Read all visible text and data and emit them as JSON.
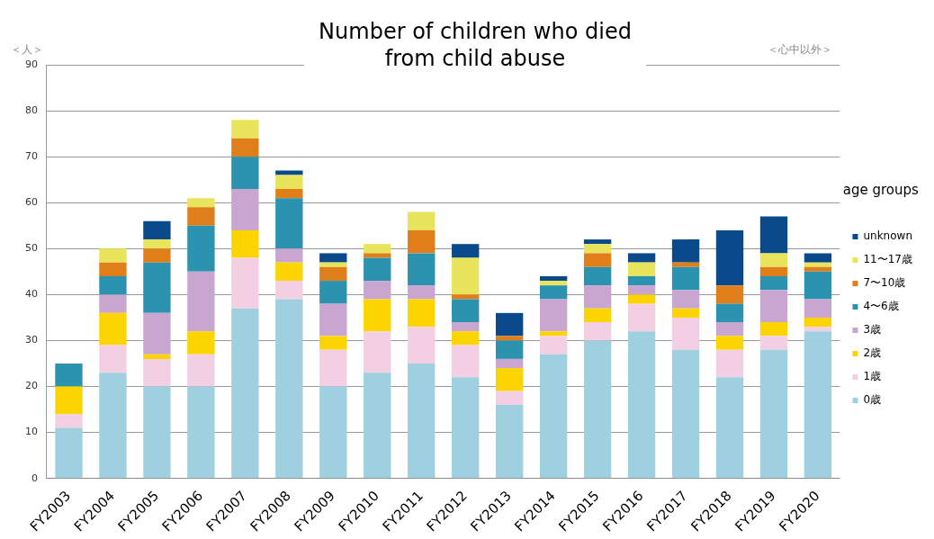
{
  "chart_data": {
    "type": "bar",
    "title": "Number of children who died from child abuse",
    "ylabel": "＜人＞",
    "legend_title": "age groups",
    "annotations": [
      "＜心中以外＞"
    ],
    "categories": [
      "FY2003",
      "FY2004",
      "FY2005",
      "FY2006",
      "FY2007",
      "FY2008",
      "FY2009",
      "FY2010",
      "FY2011",
      "FY2012",
      "FY2013",
      "FY2014",
      "FY2015",
      "FY2016",
      "FY2017",
      "FY2018",
      "FY2019",
      "FY2020"
    ],
    "stacked": true,
    "ylim": [
      0,
      90
    ],
    "yticks": [
      0,
      10,
      20,
      30,
      40,
      50,
      60,
      70,
      80,
      90
    ],
    "grid": "y",
    "legend": "right",
    "series": [
      {
        "name": "0歳",
        "color": "#9fd0e0",
        "values": [
          11,
          23,
          20,
          20,
          37,
          39,
          20,
          23,
          25,
          22,
          16,
          27,
          30,
          32,
          28,
          22,
          28,
          32
        ]
      },
      {
        "name": "1歳",
        "color": "#f2cfe3",
        "values": [
          3,
          6,
          6,
          7,
          11,
          4,
          8,
          9,
          8,
          7,
          3,
          4,
          4,
          6,
          7,
          6,
          3,
          1
        ]
      },
      {
        "name": "2歳",
        "color": "#fcd500",
        "values": [
          6,
          7,
          1,
          5,
          6,
          4,
          3,
          7,
          6,
          3,
          5,
          1,
          3,
          2,
          2,
          3,
          3,
          2
        ]
      },
      {
        "name": "3歳",
        "color": "#c9a6d0",
        "values": [
          0,
          4,
          9,
          13,
          9,
          3,
          7,
          4,
          3,
          2,
          2,
          7,
          5,
          2,
          4,
          3,
          7,
          4
        ]
      },
      {
        "name": "4〜6歳",
        "color": "#2b93b0",
        "values": [
          5,
          4,
          11,
          10,
          7,
          11,
          5,
          5,
          7,
          5,
          4,
          3,
          4,
          2,
          5,
          4,
          3,
          6
        ]
      },
      {
        "name": "7〜10歳",
        "color": "#e07f1a",
        "values": [
          0,
          3,
          3,
          4,
          4,
          2,
          3,
          1,
          5,
          1,
          1,
          0,
          3,
          0,
          1,
          4,
          2,
          1
        ]
      },
      {
        "name": "11〜17歳",
        "color": "#e8e45c",
        "values": [
          0,
          3,
          2,
          2,
          4,
          3,
          1,
          2,
          4,
          8,
          0,
          1,
          2,
          3,
          0,
          0,
          3,
          1
        ]
      },
      {
        "name": "unknown",
        "color": "#0b4a8a",
        "values": [
          0,
          0,
          4,
          0,
          0,
          1,
          2,
          0,
          0,
          3,
          5,
          1,
          1,
          2,
          5,
          12,
          8,
          2
        ]
      }
    ]
  }
}
